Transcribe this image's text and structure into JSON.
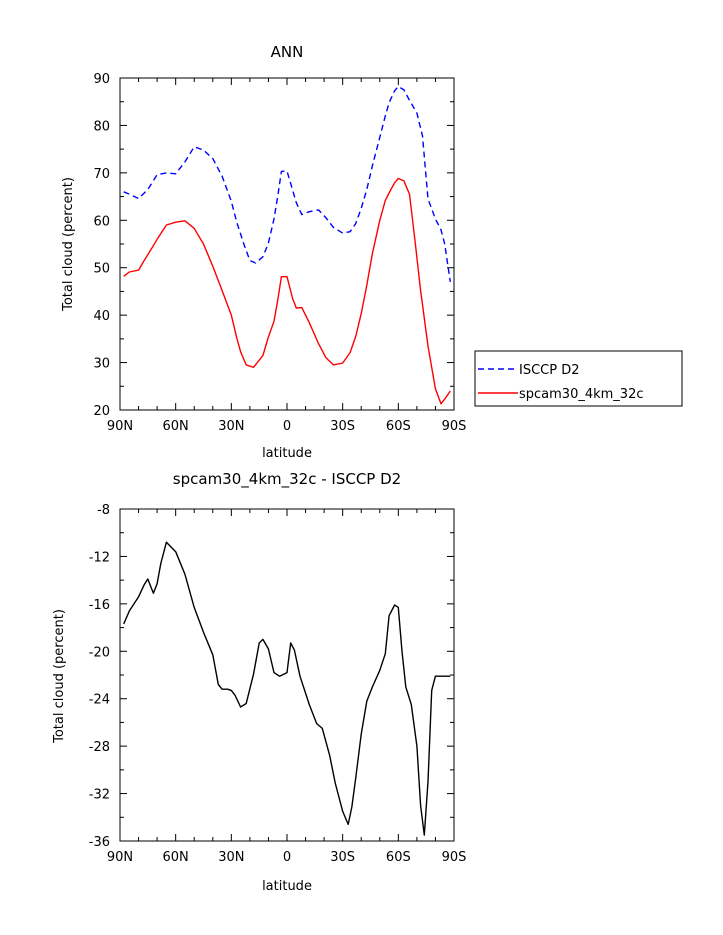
{
  "chart_data": [
    {
      "type": "line",
      "title": "ANN",
      "xlabel": "latitude",
      "ylabel": "Total cloud (percent)",
      "xlim": [
        90,
        -90
      ],
      "ylim": [
        20,
        90
      ],
      "x_ticks": [
        90,
        60,
        30,
        0,
        -30,
        -60,
        -90
      ],
      "x_tick_labels": [
        "90N",
        "60N",
        "30N",
        "0",
        "30S",
        "60S",
        "90S"
      ],
      "y_ticks": [
        20,
        30,
        40,
        50,
        60,
        70,
        80,
        90
      ],
      "y_tick_labels": [
        "20",
        "30",
        "40",
        "50",
        "60",
        "70",
        "80",
        "90"
      ],
      "grid": false,
      "legend_position": "right",
      "series": [
        {
          "name": "ISCCP D2",
          "color": "#0000ff",
          "dash": "dashed",
          "x": [
            88,
            85,
            80,
            75,
            70,
            65,
            60,
            55,
            50,
            45,
            40,
            35,
            30,
            27,
            23,
            20,
            17,
            13,
            10,
            7,
            5,
            3,
            0,
            -5,
            -8,
            -12,
            -17,
            -21,
            -25,
            -30,
            -34,
            -37,
            -40,
            -43,
            -46,
            -50,
            -53,
            -55,
            -58,
            -60,
            -63,
            -66,
            -70,
            -73,
            -76,
            -80,
            -83,
            -85,
            -88
          ],
          "y": [
            66,
            65.5,
            64.6,
            66.5,
            69.6,
            70,
            69.8,
            72.3,
            75.5,
            74.8,
            73,
            69.3,
            64,
            59.5,
            54.7,
            51.5,
            51,
            52.3,
            55.2,
            60.3,
            65,
            70.3,
            70.4,
            63.7,
            61.2,
            61.8,
            62.2,
            60.5,
            58.5,
            57.3,
            57.6,
            59.3,
            62.5,
            66.5,
            71.5,
            77.5,
            82,
            84.8,
            87.3,
            88.2,
            87.5,
            85.3,
            82.6,
            77.8,
            64.5,
            60.3,
            58,
            55,
            47
          ]
        },
        {
          "name": "spcam30_4km_32c",
          "color": "#ff0000",
          "dash": "solid",
          "x": [
            88,
            85,
            80,
            77,
            73,
            70,
            65,
            60,
            55,
            50,
            45,
            40,
            35,
            30,
            27,
            25,
            22,
            18,
            13,
            10,
            7,
            5,
            3,
            0,
            -3,
            -5,
            -8,
            -12,
            -17,
            -21,
            -25,
            -30,
            -34,
            -37,
            -40,
            -43,
            -46,
            -50,
            -53,
            -56,
            -58,
            -60,
            -63,
            -66,
            -69,
            -72,
            -76,
            -80,
            -83,
            -85,
            -88
          ],
          "y": [
            48.2,
            49.1,
            49.5,
            51.5,
            54,
            56,
            59,
            59.6,
            59.9,
            58.3,
            55,
            50.3,
            45.2,
            40,
            35.1,
            32.3,
            29.5,
            29,
            31.5,
            35.4,
            38.7,
            43.1,
            48.1,
            48.1,
            43.5,
            41.5,
            41.6,
            38.4,
            34,
            31,
            29.5,
            29.9,
            32.1,
            35.5,
            40.3,
            46.3,
            53,
            60,
            64.2,
            66.5,
            67.9,
            68.8,
            68.3,
            65.5,
            55.7,
            45.2,
            33.5,
            24.5,
            21.3,
            22.3,
            24
          ]
        }
      ]
    },
    {
      "type": "line",
      "title": "spcam30_4km_32c - ISCCP D2",
      "xlabel": "latitude",
      "ylabel": "Total cloud (percent)",
      "xlim": [
        90,
        -90
      ],
      "ylim": [
        -36,
        -8
      ],
      "x_ticks": [
        90,
        60,
        30,
        0,
        -30,
        -60,
        -90
      ],
      "x_tick_labels": [
        "90N",
        "60N",
        "30N",
        "0",
        "30S",
        "60S",
        "90S"
      ],
      "y_ticks": [
        -36,
        -32,
        -28,
        -24,
        -20,
        -16,
        -12,
        -8
      ],
      "y_tick_labels": [
        "-36",
        "-32",
        "-28",
        "-24",
        "-20",
        "-16",
        "-12",
        "-8"
      ],
      "grid": false,
      "series": [
        {
          "color": "#000000",
          "dash": "solid",
          "x": [
            88,
            85,
            80,
            77,
            75,
            72,
            70,
            68,
            65,
            60,
            55,
            50,
            45,
            40,
            37,
            35,
            32,
            30,
            28,
            25,
            22,
            18,
            15,
            13,
            10,
            7,
            4,
            0,
            -2,
            -4,
            -7,
            -12,
            -16,
            -19,
            -23,
            -26,
            -30,
            -33,
            -35,
            -37,
            -40,
            -43,
            -46,
            -50,
            -53,
            -55,
            -58,
            -60,
            -62,
            -64,
            -67,
            -70,
            -72,
            -74,
            -76,
            -78,
            -80,
            -82,
            -85,
            -88
          ],
          "y": [
            -17.7,
            -16.6,
            -15.4,
            -14.4,
            -13.9,
            -15.1,
            -14.3,
            -12.6,
            -10.8,
            -11.6,
            -13.5,
            -16.3,
            -18.4,
            -20.3,
            -22.8,
            -23.2,
            -23.2,
            -23.3,
            -23.7,
            -24.7,
            -24.4,
            -21.9,
            -19.3,
            -19,
            -19.8,
            -21.8,
            -22.1,
            -21.8,
            -19.3,
            -19.9,
            -22.1,
            -24.5,
            -26.1,
            -26.5,
            -28.8,
            -31.1,
            -33.5,
            -34.6,
            -33.1,
            -30.7,
            -27,
            -24.2,
            -23,
            -21.6,
            -20.2,
            -17,
            -16.1,
            -16.3,
            -20,
            -23,
            -24.5,
            -28,
            -33,
            -35.5,
            -31,
            -23.3,
            -22.1,
            -22.1,
            -22.1,
            -22.1
          ]
        }
      ]
    }
  ]
}
